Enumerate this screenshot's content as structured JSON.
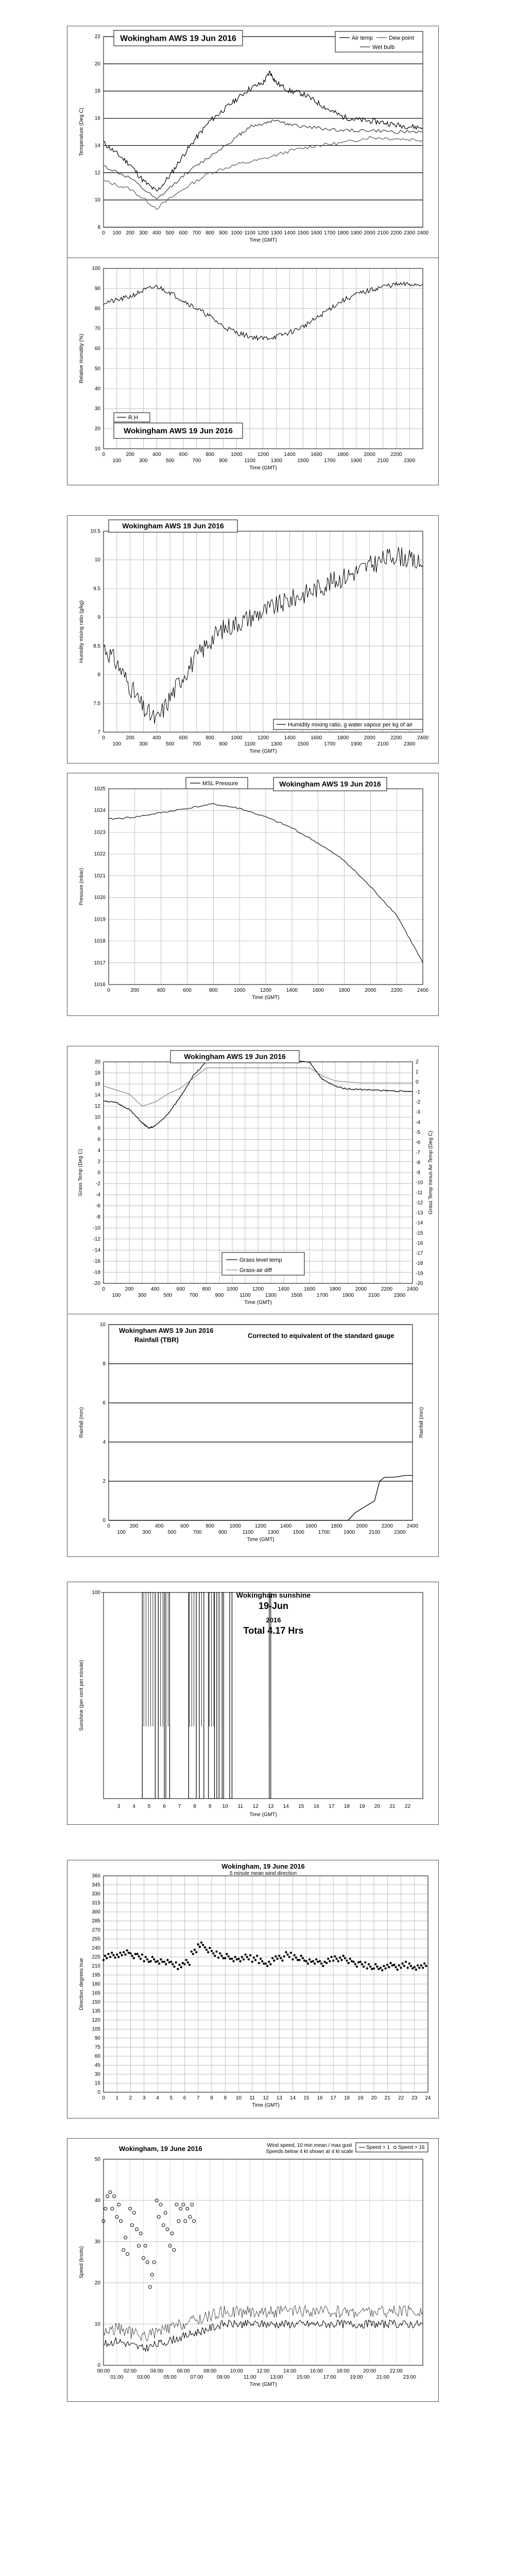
{
  "chart_data": [
    {
      "id": "temp",
      "type": "line",
      "title": "Wokingham AWS 19 Jun 2016",
      "ylabel": "Temperature (Deg C)",
      "xlabel": "Time (GMT)",
      "ylim": [
        8,
        22
      ],
      "yticks": [
        8,
        10,
        12,
        14,
        16,
        18,
        20,
        22
      ],
      "xlim": [
        0,
        2400
      ],
      "xticks": [
        0,
        100,
        200,
        300,
        400,
        500,
        600,
        700,
        800,
        900,
        1000,
        1100,
        1200,
        1300,
        1400,
        1500,
        1600,
        1700,
        1800,
        1900,
        2000,
        2100,
        2200,
        2300,
        2400
      ],
      "legend": [
        "Air temp",
        "Dew point",
        "Wet bulb"
      ],
      "series": [
        {
          "name": "Air temp",
          "x": [
            0,
            100,
            200,
            300,
            400,
            500,
            600,
            700,
            800,
            900,
            1000,
            1100,
            1200,
            1250,
            1300,
            1400,
            1500,
            1600,
            1700,
            1800,
            1900,
            2000,
            2100,
            2200,
            2300,
            2400
          ],
          "y": [
            14.2,
            13.4,
            12.6,
            11.4,
            10.6,
            11.8,
            13.3,
            14.6,
            15.8,
            16.6,
            17.4,
            18.2,
            18.6,
            19.4,
            18.6,
            18.0,
            17.8,
            17.2,
            16.6,
            16.1,
            15.9,
            15.8,
            15.7,
            15.5,
            15.4,
            15.3
          ]
        },
        {
          "name": "Wet bulb",
          "x": [
            0,
            200,
            400,
            600,
            800,
            1000,
            1100,
            1200,
            1300,
            1400,
            1600,
            1800,
            2000,
            2200,
            2400
          ],
          "y": [
            12.5,
            11.6,
            10.0,
            11.8,
            13.2,
            14.6,
            15.4,
            15.6,
            15.9,
            15.5,
            15.3,
            15.1,
            15.1,
            15.0,
            15.0
          ]
        },
        {
          "name": "Dew point",
          "x": [
            0,
            200,
            400,
            600,
            800,
            1000,
            1200,
            1400,
            1600,
            1800,
            2000,
            2200,
            2400
          ],
          "y": [
            11.4,
            10.8,
            9.4,
            10.8,
            12.0,
            12.6,
            13.0,
            13.6,
            14.0,
            14.2,
            14.6,
            14.5,
            14.4
          ]
        }
      ]
    },
    {
      "id": "rh",
      "type": "line",
      "title": "Wokingham AWS 19 Jun 2016",
      "ylabel": "Relative Humidity (%)",
      "xlabel": "Time (GMT)",
      "ylim": [
        10,
        100
      ],
      "yticks": [
        10,
        20,
        30,
        40,
        50,
        60,
        70,
        80,
        90,
        100
      ],
      "xlim": [
        0,
        2400
      ],
      "xticks": [
        0,
        100,
        200,
        300,
        400,
        500,
        600,
        700,
        800,
        900,
        1000,
        1100,
        1200,
        1300,
        1400,
        1500,
        1600,
        1700,
        1800,
        1900,
        2000,
        2100,
        2200,
        2300
      ],
      "legend": [
        "R.H"
      ],
      "series": [
        {
          "name": "R.H",
          "x": [
            0,
            100,
            200,
            300,
            400,
            500,
            600,
            700,
            800,
            900,
            1000,
            1100,
            1200,
            1300,
            1400,
            1500,
            1600,
            1700,
            1800,
            1900,
            2000,
            2100,
            2200,
            2300,
            2400
          ],
          "y": [
            83,
            84,
            86,
            89,
            91,
            88,
            84,
            80,
            76,
            71,
            68,
            66,
            65,
            66,
            68,
            71,
            75,
            80,
            84,
            87,
            89,
            91,
            92,
            92,
            92
          ]
        }
      ]
    },
    {
      "id": "mix",
      "type": "line",
      "title": "Wokingham AWS 19 Jun 2016",
      "ylabel": "Humidity mixing ratio (g/kg)",
      "xlabel": "Time (GMT)",
      "ylim": [
        7,
        10.5
      ],
      "yticks": [
        7,
        7.5,
        8,
        8.5,
        9,
        9.5,
        10,
        10.5
      ],
      "xlim": [
        0,
        2400
      ],
      "xticks": [
        0,
        100,
        200,
        300,
        400,
        500,
        600,
        700,
        800,
        900,
        1000,
        1100,
        1200,
        1300,
        1400,
        1500,
        1600,
        1700,
        1800,
        1900,
        2000,
        2100,
        2200,
        2300,
        2400
      ],
      "legend": [
        "Humidity mixing ratio, g water vapour per kg of air"
      ],
      "series": [
        {
          "name": "Humidity mixing ratio, g water vapour per kg of air",
          "x": [
            0,
            100,
            200,
            300,
            400,
            500,
            600,
            700,
            800,
            900,
            1000,
            1100,
            1200,
            1300,
            1400,
            1500,
            1600,
            1700,
            1800,
            1900,
            2000,
            2100,
            2200,
            2300,
            2400
          ],
          "y": [
            8.5,
            8.2,
            7.8,
            7.4,
            7.2,
            7.6,
            8.0,
            8.3,
            8.6,
            8.8,
            8.9,
            9.0,
            9.1,
            9.2,
            9.3,
            9.4,
            9.5,
            9.6,
            9.7,
            9.8,
            9.9,
            10.0,
            10.1,
            10.0,
            9.9
          ]
        }
      ]
    },
    {
      "id": "pres",
      "type": "line",
      "title": "Wokingham AWS 19 Jun 2016",
      "ylabel": "Pressure (mbar)",
      "xlabel": "Time (GMT)",
      "ylim": [
        1016,
        1025
      ],
      "yticks": [
        1016,
        1017,
        1018,
        1019,
        1020,
        1021,
        1022,
        1023,
        1024,
        1025
      ],
      "xlim": [
        0,
        2400
      ],
      "xticks": [
        0,
        200,
        400,
        600,
        800,
        1000,
        1200,
        1400,
        1600,
        1800,
        2000,
        2200,
        2400
      ],
      "legend": [
        "MSL Pressure"
      ],
      "series": [
        {
          "name": "MSL Pressure",
          "x": [
            0,
            200,
            400,
            600,
            800,
            1000,
            1200,
            1400,
            1600,
            1800,
            2000,
            2200,
            2400
          ],
          "y": [
            1023.6,
            1023.7,
            1023.9,
            1024.1,
            1024.3,
            1024.1,
            1023.7,
            1023.2,
            1022.5,
            1021.7,
            1020.5,
            1019.2,
            1017.0
          ]
        }
      ]
    },
    {
      "id": "grass",
      "type": "line",
      "title": "Wokingham AWS 19 Jun 2016",
      "ylabel": "Grass Temp (Deg C)",
      "ylabel2": "Grass Temp minus Air Temp (Deg C)",
      "xlabel": "Time (GMT)",
      "ylim": [
        -20,
        20
      ],
      "yticks": [
        -20,
        -18,
        -16,
        -14,
        -12,
        -10,
        -8,
        -6,
        -4,
        -2,
        0,
        2,
        4,
        6,
        8,
        10,
        12,
        14,
        16,
        18,
        20
      ],
      "ylim2": [
        -20,
        2
      ],
      "yticks2": [
        -20,
        -19,
        -18,
        -17,
        -16,
        -15,
        -14,
        -13,
        -12,
        -11,
        -10,
        -9,
        -8,
        -7,
        -6,
        -5,
        -4,
        -3,
        -2,
        -1,
        0,
        1,
        2
      ],
      "xlim": [
        0,
        2400
      ],
      "xticks": [
        0,
        100,
        200,
        300,
        400,
        500,
        600,
        700,
        800,
        900,
        1000,
        1100,
        1200,
        1300,
        1400,
        1500,
        1600,
        1700,
        1800,
        1900,
        2000,
        2100,
        2200,
        2300,
        2400
      ],
      "legend": [
        "Grass level temp",
        "Grass-air diff"
      ],
      "series": [
        {
          "name": "Grass level temp",
          "x": [
            0,
            100,
            200,
            300,
            350,
            400,
            500,
            600,
            700,
            800,
            1600,
            1700,
            1800,
            1900,
            2000,
            2100,
            2200,
            2300,
            2400
          ],
          "y": [
            13,
            12.6,
            11.4,
            9.0,
            8.0,
            8.4,
            10.5,
            13.8,
            17.6,
            20,
            20,
            16.8,
            15.6,
            15.1,
            15.0,
            14.9,
            14.8,
            14.7,
            14.6
          ]
        },
        {
          "name": "Grass-air diff",
          "x": [
            0,
            100,
            200,
            300,
            400,
            500,
            600,
            700,
            800,
            1600,
            1700,
            1800,
            1900,
            2000,
            2100,
            2200,
            2300,
            2400
          ],
          "y": [
            -0.4,
            -0.8,
            -1.2,
            -2.4,
            -2.0,
            -1.2,
            -0.6,
            0.4,
            1.4,
            1.4,
            0.6,
            0.1,
            0.0,
            -0.1,
            -0.1,
            -0.1,
            -0.1,
            -0.1
          ]
        }
      ]
    },
    {
      "id": "rain",
      "type": "line",
      "title": "Wokingham AWS 19 Jun 2016",
      "title2": "Rainfall (TBR)",
      "note": "Corrected to equivalent of the standard gauge",
      "ylabel": "Rainfall (mm)",
      "ylabel2": "Rainfall (mm)",
      "xlabel": "Time (GMT)",
      "ylim": [
        0,
        10
      ],
      "yticks": [
        0,
        2,
        4,
        6,
        8,
        10
      ],
      "xlim": [
        0,
        2400
      ],
      "xticks": [
        0,
        100,
        200,
        300,
        400,
        500,
        600,
        700,
        800,
        900,
        1000,
        1100,
        1200,
        1300,
        1400,
        1500,
        1600,
        1700,
        1800,
        1900,
        2000,
        2100,
        2200,
        2300,
        2400
      ],
      "series": [
        {
          "name": "",
          "x": [
            0,
            1890,
            1950,
            2000,
            2050,
            2100,
            2140,
            2180,
            2250,
            2350,
            2400
          ],
          "y": [
            0,
            0,
            0.4,
            0.6,
            0.8,
            1.0,
            2.0,
            2.2,
            2.2,
            2.3,
            2.3
          ]
        }
      ]
    },
    {
      "id": "sun",
      "type": "bar",
      "title": "Wokingham sunshine",
      "date": "19-Jun",
      "year": "2016",
      "total": "Total 4.17 Hrs",
      "ylabel": "Sunshine (per cent per minute)",
      "xlabel": "Time (GMT)",
      "ylim": [
        0,
        100
      ],
      "xlim": [
        2,
        23
      ],
      "xticks": [
        3,
        4,
        5,
        6,
        7,
        8,
        9,
        10,
        11,
        12,
        13,
        14,
        15,
        16,
        17,
        18,
        19,
        20,
        21,
        22
      ],
      "sun_periods": [
        [
          4.55,
          5.4
        ],
        [
          5.6,
          6.0
        ],
        [
          6.1,
          6.35
        ],
        [
          7.6,
          8.1
        ],
        [
          8.3,
          8.6
        ],
        [
          8.9,
          9.3
        ],
        [
          9.45,
          9.6
        ],
        [
          9.8,
          9.9
        ],
        [
          10.3,
          10.45
        ],
        [
          12.9,
          13.0
        ]
      ],
      "value": 100
    },
    {
      "id": "winddir",
      "type": "scatter",
      "title": "Wokingham,  19 June 2016",
      "subtitle": "5 minute mean wind direction",
      "ylabel": "Direction, degrees true",
      "xlabel": "Time (GMT)",
      "ylim": [
        0,
        360
      ],
      "yticks": [
        0,
        15,
        30,
        45,
        60,
        75,
        90,
        105,
        120,
        135,
        150,
        165,
        180,
        195,
        210,
        225,
        240,
        255,
        270,
        285,
        300,
        315,
        330,
        345,
        360
      ],
      "xlim": [
        0,
        24
      ],
      "xticks": [
        0,
        1,
        2,
        3,
        4,
        5,
        6,
        7,
        8,
        9,
        10,
        11,
        12,
        13,
        14,
        15,
        16,
        17,
        18,
        19,
        20,
        21,
        22,
        23,
        24
      ],
      "x": [
        0,
        0.5,
        1,
        1.5,
        2,
        2.5,
        3,
        3.5,
        4,
        4.5,
        5,
        5.5,
        6,
        6.5,
        7,
        7.5,
        8,
        8.5,
        9,
        9.5,
        10,
        10.5,
        11,
        11.5,
        12,
        12.5,
        13,
        13.5,
        14,
        14.5,
        15,
        15.5,
        16,
        16.5,
        17,
        17.5,
        18,
        18.5,
        19,
        19.5,
        20,
        20.5,
        21,
        21.5,
        22,
        22.5,
        23,
        23.5
      ],
      "y": [
        225,
        228,
        230,
        232,
        228,
        225,
        222,
        220,
        218,
        215,
        213,
        210,
        216,
        235,
        245,
        238,
        230,
        228,
        225,
        222,
        220,
        225,
        222,
        218,
        215,
        222,
        224,
        228,
        225,
        222,
        218,
        216,
        214,
        220,
        222,
        225,
        218,
        214,
        212,
        210,
        208,
        207,
        210,
        208,
        212,
        210,
        209,
        210
      ]
    },
    {
      "id": "windspeed",
      "type": "line",
      "title": "Wokingham,  19 June 2016",
      "subtitle": "Wind speed, 10 min mean / max gust",
      "subtitle2": "Speeds below 4 kt shown at 4 kt scale",
      "ylabel": "Speed (knots)",
      "xlabel": "Time (GMT)",
      "ylim": [
        0,
        50
      ],
      "yticks": [
        0,
        10,
        20,
        30,
        40,
        50
      ],
      "xlim": [
        0,
        24
      ],
      "xticks_top": [
        "00:00",
        "02:00",
        "04:00",
        "06:00",
        "08:00",
        "10:00",
        "12:00",
        "14:00",
        "16:00",
        "18:00",
        "20:00",
        "22:00"
      ],
      "xticks_bot": [
        "01:00",
        "03:00",
        "05:00",
        "07:00",
        "09:00",
        "11:00",
        "13:00",
        "15:00",
        "17:00",
        "19:00",
        "21:00",
        "23:00"
      ],
      "legend": [
        "Speed > 1",
        "Speed > 16"
      ],
      "series": [
        {
          "name": "Speed > 1",
          "x": [
            0,
            1,
            2,
            3,
            4,
            5,
            6,
            7,
            8,
            9,
            10,
            11,
            12,
            13,
            14,
            15,
            16,
            17,
            18,
            19,
            20,
            21,
            22,
            23,
            24
          ],
          "y": [
            5,
            6,
            5,
            4,
            5,
            6,
            7,
            8,
            9,
            10,
            10,
            10,
            10,
            10,
            10,
            10,
            10,
            10,
            10,
            10,
            10,
            10,
            10,
            10,
            10
          ]
        },
        {
          "name": "Speed > 16",
          "x": [
            0,
            0.5,
            1,
            1.5,
            2,
            2.5,
            3,
            3.5,
            4,
            4.5,
            5,
            5.5,
            6,
            6.5
          ],
          "y": [
            38,
            40,
            36,
            30,
            35,
            32,
            27,
            22,
            38,
            34,
            31,
            36,
            38,
            37
          ]
        }
      ]
    }
  ]
}
